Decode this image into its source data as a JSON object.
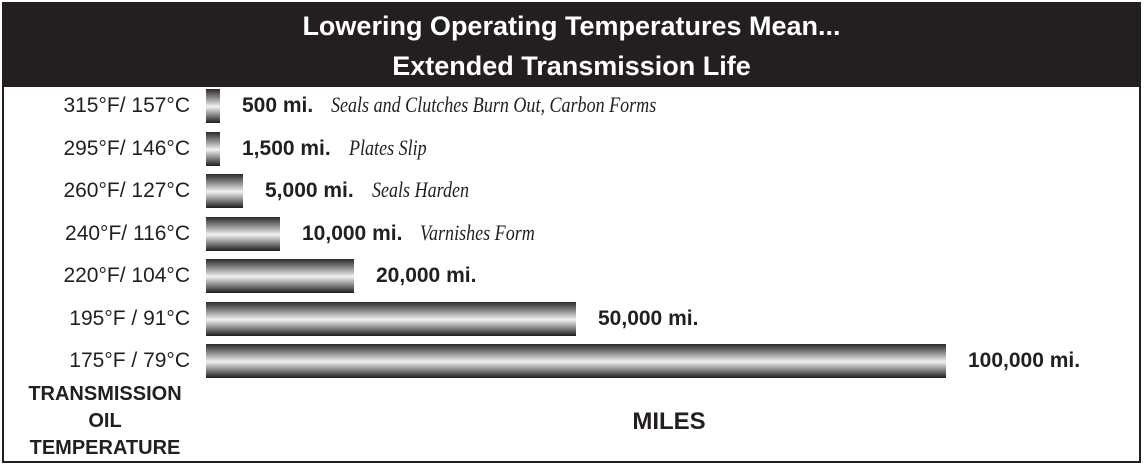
{
  "chart_data": {
    "type": "bar",
    "orientation": "horizontal",
    "title": "Lowering Operating Temperatures Mean...",
    "subtitle": "Extended Transmission Life",
    "categories": [
      "315°F/ 157°C",
      "295°F/ 146°C",
      "260°F/ 127°C",
      "240°F/ 116°C",
      "220°F/ 104°C",
      "195°F / 91°C",
      "175°F / 79°C"
    ],
    "values": [
      500,
      1500,
      5000,
      10000,
      20000,
      50000,
      100000
    ],
    "value_labels": [
      "500 mi.",
      "1,500 mi.",
      "5,000 mi.",
      "10,000 mi.",
      "20,000 mi.",
      "50,000 mi.",
      "100,000 mi."
    ],
    "annotations": [
      "Seals and Clutches Burn Out, Carbon Forms",
      "Plates Slip",
      "Seals Harden",
      "Varnishes Form",
      "",
      "",
      ""
    ],
    "ylabel": [
      "TRANSMISSION",
      "OIL",
      "TEMPERATURE"
    ],
    "xlabel": "MILES",
    "grid": false,
    "legend": "none",
    "colors": {
      "header_bg": "#231f20",
      "header_text": "#ffffff",
      "bar_dark": "#231f20",
      "bar_light": "#f2f2f2"
    }
  }
}
